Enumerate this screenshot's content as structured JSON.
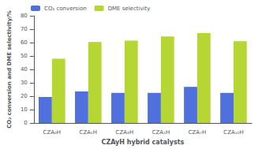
{
  "chart_data": {
    "type": "bar",
    "categories": [
      "CZA₀H",
      "CZA₁H",
      "CZA₃H",
      "CZA₅H",
      "CZA₇H",
      "CZA₁₀H"
    ],
    "series": [
      {
        "name": "CO₂ conversion",
        "values": [
          19.5,
          23.5,
          22.5,
          22.5,
          27.0,
          22.5
        ]
      },
      {
        "name": "DME selectivity",
        "values": [
          48.0,
          60.5,
          61.5,
          64.5,
          67.0,
          61.0
        ]
      }
    ],
    "xlabel": "CZAyH hybrid catalysts",
    "ylabel": "CO₂ conversion and DME selectivity/%",
    "ylim": [
      0,
      80
    ],
    "yticks": [
      0,
      10,
      20,
      30,
      40,
      50,
      60,
      70,
      80
    ],
    "grid": false,
    "legend": "upper left"
  }
}
